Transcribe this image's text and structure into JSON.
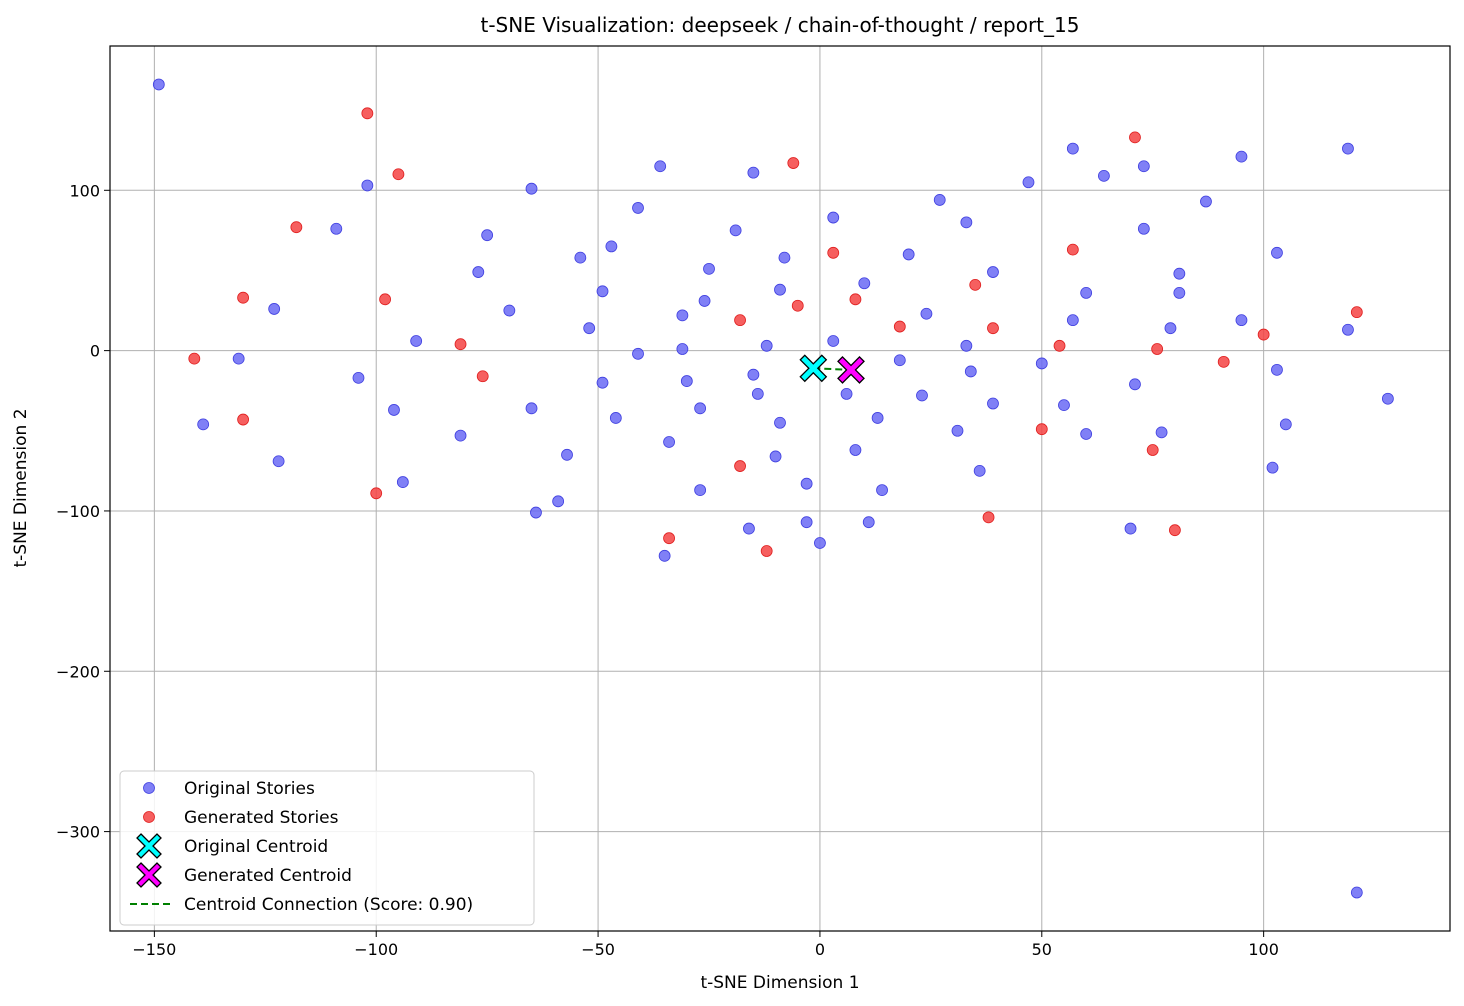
{
  "chart_data": {
    "type": "scatter",
    "title": "t-SNE Visualization: deepseek / chain-of-thought / report_15",
    "xlabel": "t-SNE Dimension 1",
    "ylabel": "t-SNE Dimension 2",
    "xlim": [
      -160,
      142
    ],
    "ylim": [
      -362,
      190
    ],
    "xticks": [
      -150,
      -100,
      -50,
      0,
      50,
      100
    ],
    "yticks": [
      -300,
      -200,
      -100,
      0,
      100
    ],
    "xtick_labels": [
      "−150",
      "−100",
      "−50",
      "0",
      "50",
      "100"
    ],
    "ytick_labels": [
      "−300",
      "−200",
      "−100",
      "0",
      "100"
    ],
    "grid": true,
    "legend_position": "lower-left",
    "colors": {
      "original": "#6a6af5",
      "generated": "#f54343",
      "original_centroid": "#00ffff",
      "generated_centroid": "#ff00ff",
      "connection": "#008000"
    },
    "series": [
      {
        "name": "Original Stories",
        "points": [
          [
            -149,
            166
          ],
          [
            -102,
            103
          ],
          [
            -65,
            101
          ],
          [
            -36,
            115
          ],
          [
            -15,
            111
          ],
          [
            3,
            83
          ],
          [
            -109,
            76
          ],
          [
            -75,
            72
          ],
          [
            -41,
            89
          ],
          [
            -19,
            75
          ],
          [
            27,
            94
          ],
          [
            33,
            80
          ],
          [
            47,
            105
          ],
          [
            57,
            126
          ],
          [
            64,
            109
          ],
          [
            73,
            115
          ],
          [
            87,
            93
          ],
          [
            95,
            121
          ],
          [
            119,
            126
          ],
          [
            -123,
            26
          ],
          [
            -77,
            49
          ],
          [
            -70,
            25
          ],
          [
            -54,
            58
          ],
          [
            -47,
            65
          ],
          [
            -49,
            37
          ],
          [
            -52,
            14
          ],
          [
            -31,
            22
          ],
          [
            -26,
            31
          ],
          [
            -25,
            51
          ],
          [
            -9,
            38
          ],
          [
            -8,
            58
          ],
          [
            10,
            42
          ],
          [
            20,
            60
          ],
          [
            24,
            23
          ],
          [
            39,
            49
          ],
          [
            60,
            36
          ],
          [
            73,
            76
          ],
          [
            81,
            48
          ],
          [
            81,
            36
          ],
          [
            57,
            19
          ],
          [
            79,
            14
          ],
          [
            95,
            19
          ],
          [
            103,
            61
          ],
          [
            119,
            13
          ],
          [
            -131,
            -5
          ],
          [
            -139,
            -46
          ],
          [
            -122,
            -69
          ],
          [
            -104,
            -17
          ],
          [
            -91,
            6
          ],
          [
            -96,
            -37
          ],
          [
            -94,
            -82
          ],
          [
            -81,
            -53
          ],
          [
            -65,
            -36
          ],
          [
            -57,
            -65
          ],
          [
            -64,
            -101
          ],
          [
            -59,
            -94
          ],
          [
            -49,
            -20
          ],
          [
            -46,
            -42
          ],
          [
            -41,
            -2
          ],
          [
            -31,
            1
          ],
          [
            -30,
            -19
          ],
          [
            -34,
            -57
          ],
          [
            -27,
            -36
          ],
          [
            -27,
            -87
          ],
          [
            -12,
            3
          ],
          [
            -15,
            -15
          ],
          [
            -14,
            -27
          ],
          [
            -9,
            -45
          ],
          [
            -10,
            -66
          ],
          [
            -3,
            -83
          ],
          [
            3,
            6
          ],
          [
            6,
            -27
          ],
          [
            8,
            -62
          ],
          [
            13,
            -42
          ],
          [
            14,
            -87
          ],
          [
            11,
            -107
          ],
          [
            18,
            -6
          ],
          [
            23,
            -28
          ],
          [
            31,
            -50
          ],
          [
            33,
            3
          ],
          [
            34,
            -13
          ],
          [
            36,
            -75
          ],
          [
            39,
            -33
          ],
          [
            50,
            -8
          ],
          [
            55,
            -34
          ],
          [
            60,
            -52
          ],
          [
            71,
            -21
          ],
          [
            77,
            -51
          ],
          [
            70,
            -111
          ],
          [
            103,
            -12
          ],
          [
            105,
            -46
          ],
          [
            102,
            -73
          ],
          [
            128,
            -30
          ],
          [
            121,
            -338
          ],
          [
            -35,
            -128
          ],
          [
            -16,
            -111
          ],
          [
            -3,
            -107
          ],
          [
            0,
            -120
          ]
        ]
      },
      {
        "name": "Generated Stories",
        "points": [
          [
            -102,
            148
          ],
          [
            -95,
            110
          ],
          [
            -118,
            77
          ],
          [
            -130,
            33
          ],
          [
            -98,
            32
          ],
          [
            -141,
            -5
          ],
          [
            -130,
            -43
          ],
          [
            -100,
            -89
          ],
          [
            -81,
            4
          ],
          [
            -76,
            -16
          ],
          [
            -6,
            117
          ],
          [
            -5,
            28
          ],
          [
            -18,
            19
          ],
          [
            3,
            61
          ],
          [
            8,
            32
          ],
          [
            18,
            15
          ],
          [
            35,
            41
          ],
          [
            39,
            14
          ],
          [
            57,
            63
          ],
          [
            71,
            133
          ],
          [
            54,
            3
          ],
          [
            76,
            1
          ],
          [
            91,
            -7
          ],
          [
            100,
            10
          ],
          [
            121,
            24
          ],
          [
            50,
            -49
          ],
          [
            75,
            -62
          ],
          [
            80,
            -112
          ],
          [
            38,
            -104
          ],
          [
            -18,
            -72
          ],
          [
            -34,
            -117
          ],
          [
            -12,
            -125
          ]
        ]
      }
    ],
    "centroids": [
      {
        "name": "Original Centroid",
        "x": -1.5,
        "y": -11
      },
      {
        "name": "Generated Centroid",
        "x": 7,
        "y": -12
      }
    ],
    "connection_label": "Centroid Connection (Score: 0.90)"
  }
}
